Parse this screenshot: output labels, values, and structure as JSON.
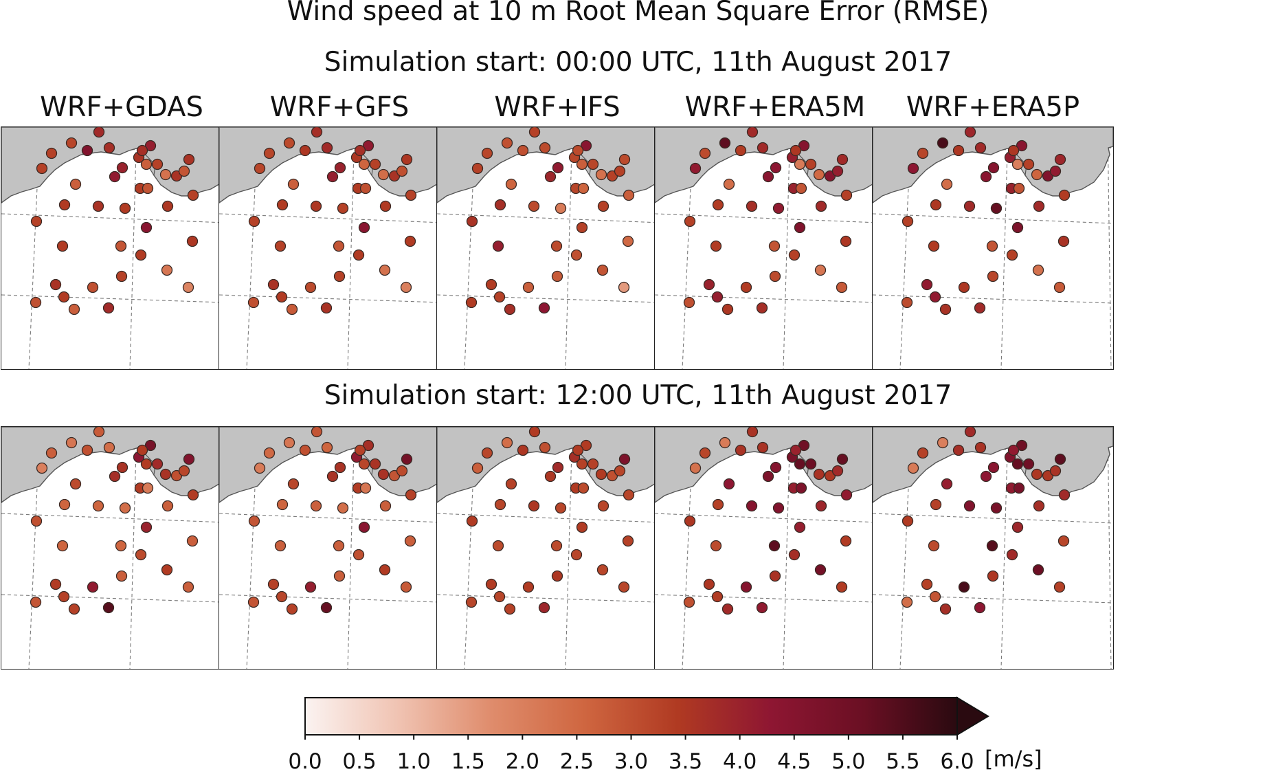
{
  "title": "Wind speed at 10 m Root Mean Square Error (RMSE)",
  "rows": [
    {
      "subtitle": "Simulation start: 00:00 UTC, 11th August 2017"
    },
    {
      "subtitle": "Simulation start: 12:00 UTC, 11th August 2017"
    }
  ],
  "models": [
    "WRF+GDAS",
    "WRF+GFS",
    "WRF+IFS",
    "WRF+ERA5M",
    "WRF+ERA5P"
  ],
  "colorbar": {
    "min": 0.0,
    "max": 6.0,
    "extend": "max",
    "ticks": [
      "0.0",
      "0.5",
      "1.0",
      "1.5",
      "2.0",
      "2.5",
      "3.0",
      "3.5",
      "4.0",
      "4.5",
      "5.0",
      "5.5",
      "6.0"
    ],
    "unit": "[m/s]",
    "colors": [
      "#fbf3f1",
      "#f0c3b2",
      "#df8c6c",
      "#cf6640",
      "#b03a22",
      "#8e1632",
      "#6a0f23",
      "#2a0a10"
    ]
  },
  "colors": {
    "land": "#c2c2c2",
    "coast": "#555555",
    "grid": "#7a7a7a",
    "marker_edge": "#3a2a25"
  },
  "chart_data": {
    "type": "scatter",
    "description_of_values": "RMSE of 10 m wind speed per station (m/s), estimated from marker colour",
    "panels": [
      {
        "row": 0,
        "model": "WRF+GDAS",
        "values": [
          3.8,
          3.2,
          3.3,
          4.6,
          3.7,
          3.3,
          4.0,
          2.7,
          3.6,
          4.1,
          2.7,
          3.3,
          3.7,
          2.3,
          3.6,
          2.9,
          3.6,
          4.2,
          3.4,
          2.9,
          3.3,
          3.4,
          3.6,
          3.4,
          3.5,
          3.3,
          4.4,
          3.4,
          2.9,
          3.4,
          3.5,
          2.2,
          1.9,
          3.3,
          3.6,
          3.0,
          3.4,
          2.7,
          3.8,
          3.0
        ]
      },
      {
        "row": 0,
        "model": "WRF+GFS",
        "values": [
          3.7,
          3.1,
          3.2,
          3.5,
          3.8,
          3.2,
          4.0,
          2.7,
          3.5,
          4.2,
          2.6,
          3.3,
          3.7,
          2.4,
          3.6,
          3.0,
          3.5,
          4.1,
          3.4,
          3.0,
          3.3,
          3.4,
          3.5,
          3.3,
          3.4,
          3.3,
          4.4,
          3.3,
          2.9,
          3.4,
          3.4,
          2.3,
          2.0,
          3.3,
          3.6,
          3.1,
          3.4,
          2.8,
          3.6,
          3.0
        ]
      },
      {
        "row": 0,
        "model": "WRF+IFS",
        "values": [
          3.3,
          3.0,
          3.2,
          3.0,
          3.1,
          3.3,
          4.2,
          2.6,
          3.2,
          4.4,
          2.7,
          3.2,
          3.1,
          2.3,
          3.3,
          3.3,
          3.1,
          3.9,
          3.2,
          2.6,
          2.7,
          3.7,
          3.1,
          2.1,
          3.3,
          3.6,
          3.3,
          4.1,
          3.1,
          3.0,
          2.5,
          2.9,
          1.5,
          2.8,
          3.4,
          2.7,
          3.3,
          3.7,
          4.3,
          3.4
        ]
      },
      {
        "row": 0,
        "model": "WRF+ERA5M",
        "values": [
          3.8,
          5.3,
          3.1,
          3.4,
          3.8,
          4.2,
          4.3,
          2.4,
          4.1,
          4.5,
          2.1,
          3.3,
          3.5,
          2.5,
          4.5,
          4.1,
          3.8,
          4.4,
          4.0,
          2.9,
          3.3,
          3.4,
          3.7,
          4.2,
          3.8,
          3.3,
          4.6,
          3.4,
          2.9,
          3.3,
          3.5,
          2.2,
          2.8,
          3.1,
          4.0,
          3.4,
          4.1,
          3.5,
          3.7,
          3.0
        ]
      },
      {
        "row": 0,
        "model": "WRF+ERA5P",
        "values": [
          3.9,
          5.6,
          3.2,
          3.5,
          3.8,
          4.3,
          4.5,
          2.4,
          4.1,
          4.4,
          2.0,
          3.3,
          3.5,
          2.6,
          4.6,
          4.2,
          3.9,
          4.4,
          4.0,
          2.9,
          3.4,
          3.5,
          3.8,
          5.2,
          3.8,
          3.3,
          4.7,
          3.4,
          2.9,
          3.3,
          3.6,
          2.3,
          2.8,
          3.2,
          4.2,
          3.5,
          4.2,
          3.6,
          3.8,
          3.1
        ]
      }
    ]
  }
}
